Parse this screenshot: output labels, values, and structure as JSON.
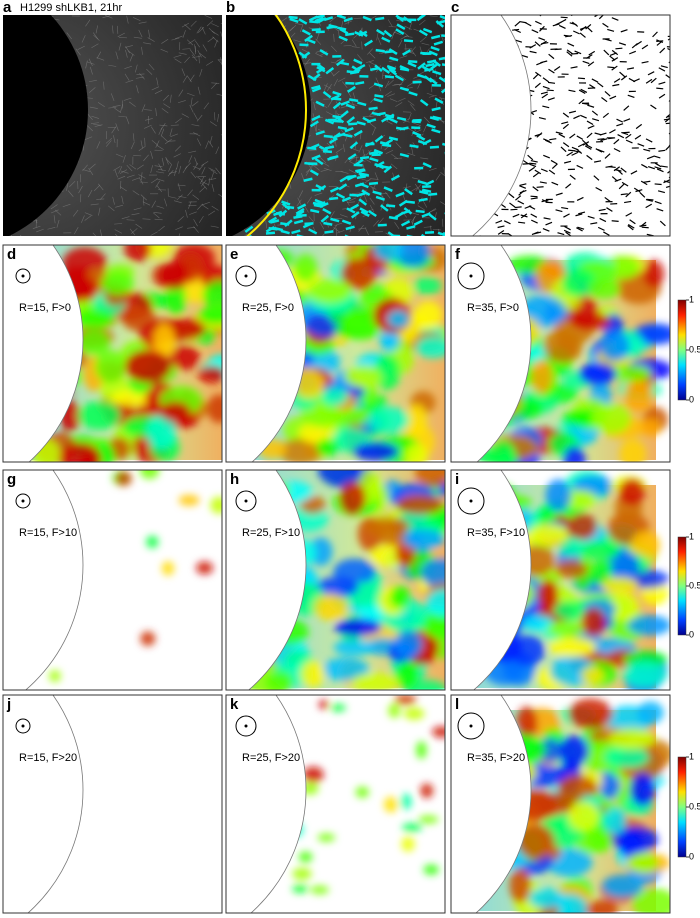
{
  "title": "H1299 shLKB1, 21hr",
  "panels": [
    {
      "letter": "a"
    },
    {
      "letter": "b"
    },
    {
      "letter": "c"
    },
    {
      "letter": "d",
      "label": "R=15, F>0"
    },
    {
      "letter": "e",
      "label": "R=25, F>0"
    },
    {
      "letter": "f",
      "label": "R=35, F>0"
    },
    {
      "letter": "g",
      "label": "R=15, F>10"
    },
    {
      "letter": "h",
      "label": "R=25, F>10"
    },
    {
      "letter": "i",
      "label": "R=35, F>10"
    },
    {
      "letter": "j",
      "label": "R=15, F>20"
    },
    {
      "letter": "k",
      "label": "R=25, F>20"
    },
    {
      "letter": "l",
      "label": "R=35, F>20"
    }
  ],
  "colorbar": {
    "ticks": [
      1,
      0.5,
      0
    ]
  }
}
